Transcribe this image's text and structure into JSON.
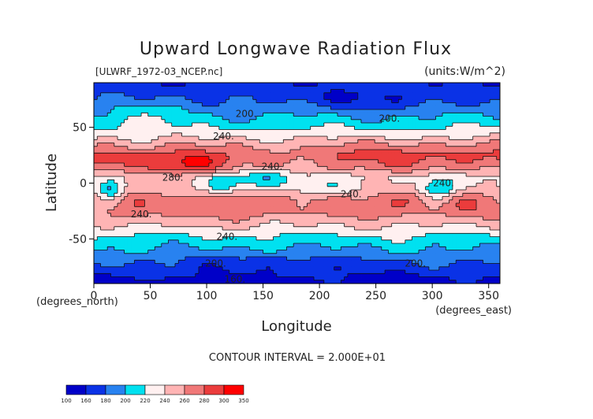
{
  "chart_data": {
    "type": "heatmap",
    "title": "Upward Longwave Radiation Flux",
    "subtitle_left": "[ULWRF_1972-03_NCEP.nc]",
    "subtitle_right": "(units:W/m^2)",
    "xlabel": "Longitude",
    "ylabel": "Latitude",
    "x_unit_note": "(degrees_east)",
    "y_unit_note": "(degrees_north)",
    "xlim": [
      0,
      360
    ],
    "ylim": [
      -90,
      90
    ],
    "x_ticks": [
      0,
      50,
      100,
      150,
      200,
      250,
      300,
      350
    ],
    "y_ticks": [
      -50,
      0,
      50
    ],
    "contour_interval_label": "CONTOUR INTERVAL = 2.000E+01",
    "contour_labels": [
      {
        "text": "200.",
        "lon": 135,
        "lat": 62
      },
      {
        "text": "200.",
        "lon": 262,
        "lat": 58
      },
      {
        "text": "240.",
        "lon": 115,
        "lat": 42
      },
      {
        "text": "240.",
        "lon": 158,
        "lat": 15
      },
      {
        "text": "280.",
        "lon": 70,
        "lat": 5
      },
      {
        "text": "240.",
        "lon": 228,
        "lat": -10
      },
      {
        "text": "240.",
        "lon": 310,
        "lat": 0
      },
      {
        "text": "240.",
        "lon": 42,
        "lat": -28
      },
      {
        "text": "240.",
        "lon": 118,
        "lat": -48
      },
      {
        "text": "200.",
        "lon": 108,
        "lat": -72
      },
      {
        "text": "200.",
        "lon": 285,
        "lat": -72
      },
      {
        "text": "160.",
        "lon": 125,
        "lat": -86
      }
    ],
    "colorbar": {
      "levels": [
        "100",
        "160",
        "180",
        "200",
        "220",
        "240",
        "260",
        "280",
        "300",
        "350"
      ],
      "colors": [
        "#0000c8",
        "#0a32e6",
        "#2882f0",
        "#00e1f0",
        "#fff0f0",
        "#ffb4b4",
        "#f07878",
        "#eb3c3c",
        "#ff0000"
      ]
    },
    "latitude_profile": [
      {
        "lat": 90,
        "value": 165
      },
      {
        "lat": 75,
        "value": 175
      },
      {
        "lat": 65,
        "value": 192
      },
      {
        "lat": 55,
        "value": 208
      },
      {
        "lat": 45,
        "value": 228
      },
      {
        "lat": 35,
        "value": 252
      },
      {
        "lat": 25,
        "value": 268
      },
      {
        "lat": 15,
        "value": 262
      },
      {
        "lat": 5,
        "value": 238
      },
      {
        "lat": -5,
        "value": 244
      },
      {
        "lat": -15,
        "value": 262
      },
      {
        "lat": -25,
        "value": 262
      },
      {
        "lat": -35,
        "value": 246
      },
      {
        "lat": -45,
        "value": 224
      },
      {
        "lat": -55,
        "value": 206
      },
      {
        "lat": -62,
        "value": 196
      },
      {
        "lat": -70,
        "value": 182
      },
      {
        "lat": -78,
        "value": 168
      },
      {
        "lat": -90,
        "value": 150
      }
    ],
    "anomalies": [
      {
        "lon": 80,
        "lat": 18,
        "dlon": 25,
        "dlat": 8,
        "amp": 45
      },
      {
        "lon": 20,
        "lat": 22,
        "dlon": 18,
        "dlat": 6,
        "amp": 18
      },
      {
        "lon": 255,
        "lat": 25,
        "dlon": 40,
        "dlat": 8,
        "amp": 18
      },
      {
        "lon": 330,
        "lat": 25,
        "dlon": 30,
        "dlat": 8,
        "amp": 16
      },
      {
        "lon": 15,
        "lat": -5,
        "dlon": 8,
        "dlat": 7,
        "amp": -55
      },
      {
        "lon": 150,
        "lat": 5,
        "dlon": 18,
        "dlat": 7,
        "amp": -40
      },
      {
        "lon": 115,
        "lat": 0,
        "dlon": 10,
        "dlat": 6,
        "amp": -35
      },
      {
        "lon": 305,
        "lat": -5,
        "dlon": 12,
        "dlat": 8,
        "amp": -55
      },
      {
        "lon": 200,
        "lat": -5,
        "dlon": 25,
        "dlat": 6,
        "amp": -20
      },
      {
        "lon": 270,
        "lat": -15,
        "dlon": 25,
        "dlat": 10,
        "amp": 20
      },
      {
        "lon": 130,
        "lat": -20,
        "dlon": 25,
        "dlat": 10,
        "amp": 18
      },
      {
        "lon": 30,
        "lat": -20,
        "dlon": 15,
        "dlat": 12,
        "amp": 15
      },
      {
        "lon": 330,
        "lat": -20,
        "dlon": 15,
        "dlat": 10,
        "amp": 12
      },
      {
        "lon": 250,
        "lat": 75,
        "dlon": 40,
        "dlat": 6,
        "amp": -15
      },
      {
        "lon": 60,
        "lat": 70,
        "dlon": 35,
        "dlat": 8,
        "amp": 12
      },
      {
        "lon": 40,
        "lat": 55,
        "dlon": 25,
        "dlat": 6,
        "amp": 15
      },
      {
        "lon": 160,
        "lat": -70,
        "dlon": 60,
        "dlat": 6,
        "amp": -12
      }
    ]
  }
}
